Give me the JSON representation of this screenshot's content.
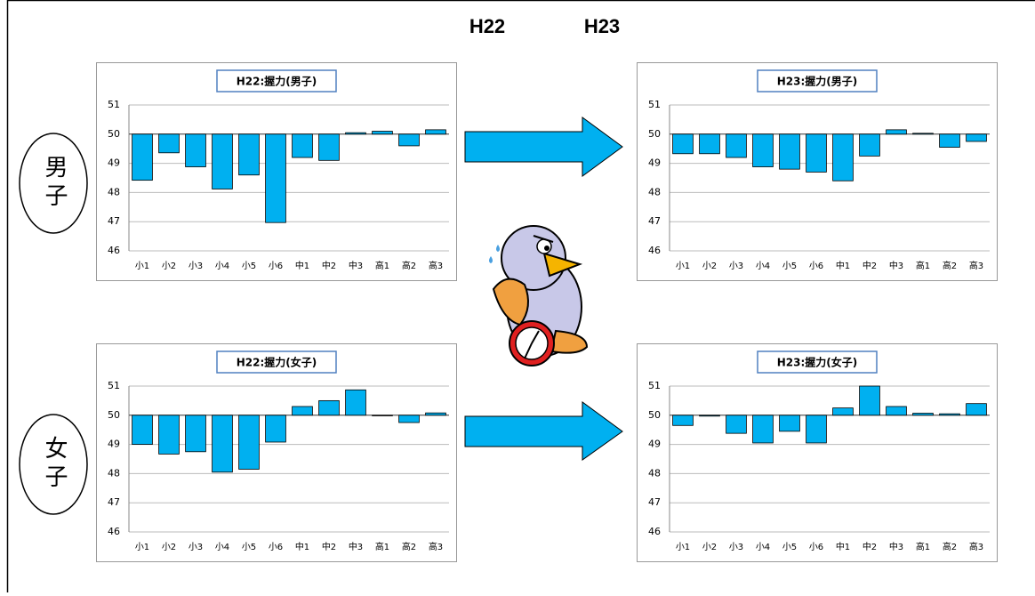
{
  "header": [
    "H22",
    "H23"
  ],
  "row_labels": [
    "男子",
    "女子"
  ],
  "chart_data": [
    {
      "type": "bar",
      "title": "H22:握力(男子)",
      "categories": [
        "小1",
        "小2",
        "小3",
        "小4",
        "小5",
        "小6",
        "中1",
        "中2",
        "中3",
        "高1",
        "高2",
        "高3"
      ],
      "values": [
        48.42,
        49.36,
        48.88,
        48.12,
        48.6,
        46.97,
        49.2,
        49.1,
        50.05,
        50.1,
        49.6,
        50.15
      ],
      "color": "#00b0f0",
      "ylim": [
        46,
        51
      ],
      "yticks": [
        46,
        47,
        48,
        49,
        50,
        51
      ],
      "grid": true,
      "x_axis_crosses": 50
    },
    {
      "type": "bar",
      "title": "H23:握力(男子)",
      "categories": [
        "小1",
        "小2",
        "小3",
        "小4",
        "小5",
        "小6",
        "中1",
        "中2",
        "中3",
        "高1",
        "高2",
        "高3"
      ],
      "values": [
        49.33,
        49.33,
        49.2,
        48.88,
        48.8,
        48.7,
        48.4,
        49.25,
        50.15,
        50.03,
        49.55,
        49.75
      ],
      "color": "#00b0f0",
      "ylim": [
        46,
        51
      ],
      "yticks": [
        46,
        47,
        48,
        49,
        50,
        51
      ],
      "grid": true,
      "x_axis_crosses": 50
    },
    {
      "type": "bar",
      "title": "H22:握力(女子)",
      "categories": [
        "小1",
        "小2",
        "小3",
        "小4",
        "小5",
        "小6",
        "中1",
        "中2",
        "中3",
        "高1",
        "高2",
        "高3"
      ],
      "values": [
        49.0,
        48.67,
        48.75,
        48.05,
        48.15,
        49.08,
        50.3,
        50.5,
        50.87,
        49.98,
        49.75,
        50.08
      ],
      "color": "#00b0f0",
      "ylim": [
        46,
        51
      ],
      "yticks": [
        46,
        47,
        48,
        49,
        50,
        51
      ],
      "grid": true,
      "x_axis_crosses": 50
    },
    {
      "type": "bar",
      "title": "H23:握力(女子)",
      "categories": [
        "小1",
        "小2",
        "小3",
        "小4",
        "小5",
        "小6",
        "中1",
        "中2",
        "中3",
        "高1",
        "高2",
        "高3"
      ],
      "values": [
        49.65,
        49.97,
        49.38,
        49.05,
        49.45,
        49.05,
        50.25,
        51.0,
        50.3,
        50.07,
        50.05,
        50.4
      ],
      "color": "#00b0f0",
      "ylim": [
        46,
        51
      ],
      "yticks": [
        46,
        47,
        48,
        49,
        50,
        51
      ],
      "grid": true,
      "x_axis_crosses": 50
    }
  ]
}
